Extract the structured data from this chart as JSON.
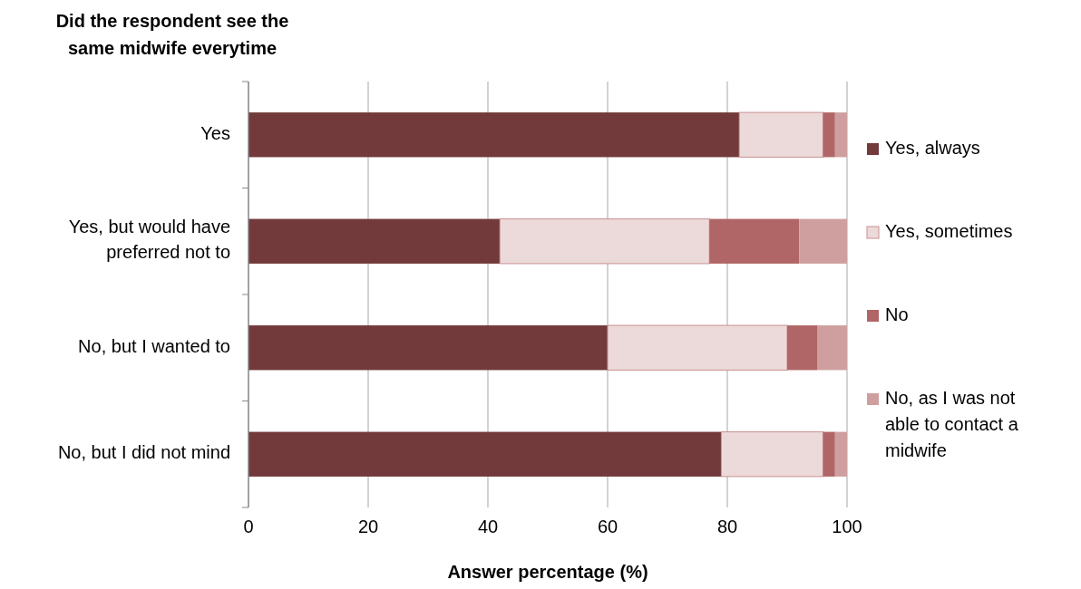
{
  "chart_data": {
    "type": "bar",
    "orientation": "horizontal",
    "stacked": true,
    "title": "Did the respondent see the same midwife everytime",
    "xlabel": "Answer percentage (%)",
    "categories": [
      "Yes",
      "Yes, but would have preferred not to",
      "No, but I wanted to",
      "No, but I did not mind"
    ],
    "series": [
      {
        "name": "Yes, always",
        "color": "#723a3a",
        "values": [
          82,
          42,
          60,
          79
        ]
      },
      {
        "name": "Yes, sometimes",
        "color": "#ecdada",
        "values": [
          14,
          35,
          30,
          17
        ]
      },
      {
        "name": "No",
        "color": "#b06666",
        "values": [
          2,
          15,
          5,
          2
        ]
      },
      {
        "name": "No, as I was not able to contact a midwife",
        "color": "#cf9f9f",
        "values": [
          2,
          8,
          5,
          2
        ]
      }
    ],
    "xlim": [
      0,
      100
    ],
    "xticks": [
      0,
      20,
      40,
      60,
      80,
      100
    ],
    "grid": "x",
    "legend": "right"
  }
}
